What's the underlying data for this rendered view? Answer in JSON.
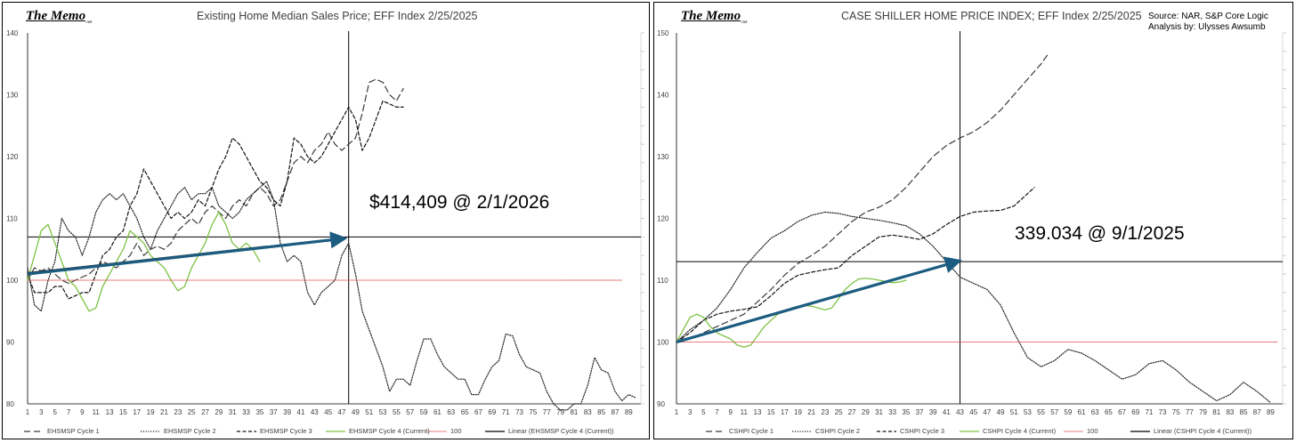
{
  "colors": {
    "cycle1": "#3a3a3a",
    "cycle2": "#222222",
    "cycle3": "#111111",
    "cycle4": "#7cc242",
    "hundred": "#e05050",
    "linear": "#000000",
    "arrow": "#1c5c80",
    "grid": "#000000"
  },
  "chart_data": [
    {
      "type": "line",
      "brand": "The Memo",
      "brand_suffix": ".net",
      "title": "Existing Home Median Sales Price; EFF Index 2/25/2025",
      "annotation": "$414,409 @ 2/1/2026",
      "ylim": [
        80,
        140
      ],
      "yticks": [
        80,
        90,
        100,
        110,
        120,
        130,
        140
      ],
      "xlim": [
        1,
        90
      ],
      "xticks": [
        1,
        3,
        5,
        7,
        9,
        11,
        13,
        15,
        17,
        19,
        21,
        23,
        25,
        27,
        29,
        31,
        33,
        35,
        37,
        39,
        41,
        43,
        45,
        47,
        49,
        51,
        53,
        55,
        57,
        59,
        61,
        63,
        65,
        67,
        69,
        71,
        73,
        75,
        77,
        79,
        81,
        83,
        85,
        87,
        89
      ],
      "vline_x": 48,
      "hline_y": 107,
      "arrow": {
        "from": [
          1,
          101
        ],
        "to": [
          47,
          106.7
        ]
      },
      "series": [
        {
          "name": "EHSMSP Cycle 1",
          "style": "long-dash",
          "color_key": "cycle1",
          "x": [
            1,
            2,
            3,
            4,
            5,
            6,
            7,
            8,
            9,
            10,
            11,
            12,
            13,
            14,
            15,
            16,
            17,
            18,
            19,
            20,
            21,
            22,
            23,
            24,
            25,
            26,
            27,
            28,
            29,
            30,
            31,
            32,
            33,
            34,
            35,
            36,
            37,
            38,
            39,
            40,
            41,
            42,
            43,
            44,
            45,
            46,
            47,
            48,
            49,
            50,
            51,
            52,
            53,
            54,
            55,
            56
          ],
          "values": [
            100,
            102,
            101.5,
            102,
            101,
            100,
            99.5,
            100,
            100.5,
            101,
            102,
            103,
            102.5,
            102,
            103,
            104,
            106,
            104,
            105,
            105.5,
            105,
            106,
            108,
            109,
            110,
            109,
            111,
            112,
            111,
            110,
            112,
            113,
            112,
            114,
            115,
            114,
            112,
            113,
            116,
            119,
            120,
            119,
            121,
            122,
            124,
            122,
            121,
            122,
            123,
            127,
            132,
            132.5,
            132,
            130,
            129,
            131
          ]
        },
        {
          "name": "EHSMSP Cycle 2",
          "style": "dotted",
          "color_key": "cycle2",
          "x": [
            1,
            2,
            3,
            4,
            5,
            6,
            7,
            8,
            9,
            10,
            11,
            12,
            13,
            14,
            15,
            16,
            17,
            18,
            19,
            20,
            21,
            22,
            23,
            24,
            25,
            26,
            27,
            28,
            29,
            30,
            31,
            32,
            33,
            34,
            35,
            36,
            37,
            38,
            39,
            40,
            41,
            42,
            43,
            44,
            45,
            46,
            47,
            48,
            49,
            50,
            51,
            52,
            53,
            54,
            55,
            56,
            57,
            58,
            59,
            60,
            61,
            62,
            63,
            64,
            65,
            66,
            67,
            68,
            69,
            70,
            71,
            72,
            73,
            74,
            75,
            76,
            77,
            78,
            79,
            80,
            81,
            82,
            83,
            84,
            85,
            86,
            87,
            88,
            89,
            90
          ],
          "values": [
            102,
            96,
            95,
            100,
            103,
            110,
            108,
            107,
            104,
            107,
            111,
            113,
            114,
            113,
            114,
            112,
            110,
            107,
            105,
            108,
            110,
            112,
            114,
            115,
            113,
            114,
            114,
            115,
            112,
            111,
            110,
            111,
            113,
            114,
            115,
            116,
            113,
            106,
            103,
            104,
            103,
            98,
            96,
            98,
            99,
            100,
            104,
            106,
            101,
            95,
            92,
            89,
            86,
            82,
            84,
            84,
            83,
            87,
            90.5,
            90.5,
            88,
            86,
            85,
            84,
            84,
            81.5,
            81.5,
            84,
            86,
            87,
            91.3,
            91,
            88,
            86,
            85.5,
            85,
            82,
            80,
            79,
            79,
            80,
            80,
            83,
            87.5,
            85.5,
            85,
            82,
            80.5,
            81.5,
            81
          ]
        },
        {
          "name": "EHSMSP Cycle 3",
          "style": "dash",
          "color_key": "cycle3",
          "x": [
            1,
            2,
            3,
            4,
            5,
            6,
            7,
            8,
            9,
            10,
            11,
            12,
            13,
            14,
            15,
            16,
            17,
            18,
            19,
            20,
            21,
            22,
            23,
            24,
            25,
            26,
            27,
            28,
            29,
            30,
            31,
            32,
            33,
            34,
            35,
            36,
            37,
            38,
            39,
            40,
            41,
            42,
            43,
            44,
            45,
            46,
            47,
            48,
            49,
            50,
            51,
            52,
            53,
            54,
            55,
            56
          ],
          "values": [
            101,
            98,
            98,
            98,
            99,
            99,
            97,
            97.5,
            98,
            98,
            101,
            104,
            105,
            107,
            108,
            112,
            114,
            118,
            116,
            114,
            112,
            110,
            111,
            110,
            111,
            113,
            112,
            115,
            118,
            120,
            123,
            122,
            120,
            118,
            116,
            115,
            113,
            112,
            116,
            123,
            122,
            120,
            119,
            120,
            122,
            124,
            126,
            128,
            126,
            121,
            123,
            126,
            129,
            128.5,
            128,
            128
          ]
        },
        {
          "name": "EHSMSP Cycle 4 (Current)",
          "style": "solid",
          "color_key": "cycle4",
          "x": [
            1,
            2,
            3,
            4,
            5,
            6,
            7,
            8,
            9,
            10,
            11,
            12,
            13,
            14,
            15,
            16,
            17,
            18,
            19,
            20,
            21,
            22,
            23,
            24,
            25,
            26,
            27,
            28,
            29,
            30,
            31,
            32,
            33,
            34,
            35
          ],
          "values": [
            100,
            104,
            108,
            109,
            106,
            103,
            100,
            99,
            97,
            95,
            95.5,
            99,
            101,
            103,
            105,
            108,
            107,
            106,
            104,
            103,
            102,
            100,
            98.3,
            99,
            102,
            104,
            106,
            109,
            111,
            109,
            106,
            105,
            106,
            105,
            103
          ]
        },
        {
          "name": "100",
          "style": "solid-thin",
          "color_key": "hundred",
          "x": [
            1,
            88
          ],
          "values": [
            100,
            100
          ]
        },
        {
          "name": "Linear (EHSMSP Cycle 4 (Current))",
          "style": "solid",
          "color_key": "linear",
          "x": [
            1,
            36
          ],
          "values": [
            101.2,
            105.5
          ]
        }
      ]
    },
    {
      "type": "line",
      "brand": "The Memo",
      "brand_suffix": ".net",
      "title": "CASE SHILLER HOME PRICE INDEX; EFF Index 2/25/2025",
      "source_line1": "Source: NAR, S&P Core Logic",
      "source_line2": "Analysis by: Ulysses Awsumb",
      "annotation": "339.034 @ 9/1/2025",
      "ylim": [
        90,
        150
      ],
      "yticks": [
        90,
        100,
        110,
        120,
        130,
        140,
        150
      ],
      "xlim": [
        1,
        90
      ],
      "xticks": [
        1,
        3,
        5,
        7,
        9,
        11,
        13,
        15,
        17,
        19,
        21,
        23,
        25,
        27,
        29,
        31,
        33,
        35,
        37,
        39,
        41,
        43,
        45,
        47,
        49,
        51,
        53,
        55,
        57,
        59,
        61,
        63,
        65,
        67,
        69,
        71,
        73,
        75,
        77,
        79,
        81,
        83,
        85,
        87,
        89
      ],
      "vline_x": 43,
      "hline_y": 113,
      "arrow": {
        "from": [
          1,
          100
        ],
        "to": [
          42.5,
          113
        ]
      },
      "series": [
        {
          "name": "CSHPI Cycle 1",
          "style": "long-dash",
          "color_key": "cycle1",
          "x": [
            1,
            3,
            5,
            7,
            9,
            11,
            13,
            15,
            17,
            19,
            21,
            23,
            25,
            27,
            29,
            31,
            33,
            35,
            37,
            39,
            41,
            43,
            45,
            47,
            49,
            51,
            53,
            55,
            56
          ],
          "values": [
            100,
            100.5,
            101.5,
            102.5,
            103.5,
            104.5,
            106.5,
            108.5,
            110.8,
            112.7,
            114,
            115.5,
            117.5,
            119.5,
            121,
            121.8,
            123,
            125,
            127.5,
            130,
            131.8,
            133,
            134,
            135.5,
            137.5,
            140,
            142.5,
            145,
            146.5
          ]
        },
        {
          "name": "CSHPI Cycle 2",
          "style": "dotted",
          "color_key": "cycle2",
          "x": [
            1,
            3,
            5,
            7,
            9,
            11,
            13,
            15,
            17,
            19,
            21,
            23,
            25,
            27,
            29,
            31,
            33,
            35,
            37,
            39,
            41,
            43,
            45,
            47,
            49,
            51,
            53,
            55,
            57,
            59,
            61,
            63,
            65,
            67,
            69,
            71,
            73,
            75,
            77,
            79,
            81,
            83,
            85,
            87,
            89
          ],
          "values": [
            100,
            102,
            103.5,
            105.5,
            108.5,
            112,
            114.5,
            116.8,
            118,
            119.5,
            120.5,
            121,
            120.8,
            120.3,
            120,
            119.7,
            119.3,
            118.8,
            117.5,
            115.5,
            113,
            110.5,
            109.5,
            108.5,
            106,
            101.5,
            97.5,
            96,
            97,
            98.8,
            98.2,
            97,
            95.5,
            94,
            94.7,
            96.5,
            97,
            95.5,
            93.5,
            92,
            90.5,
            91.5,
            93.5,
            92,
            90.2
          ]
        },
        {
          "name": "CSHPI Cycle 3",
          "style": "dash",
          "color_key": "cycle3",
          "x": [
            1,
            3,
            5,
            7,
            9,
            11,
            13,
            15,
            17,
            19,
            21,
            23,
            25,
            27,
            29,
            31,
            33,
            35,
            37,
            39,
            41,
            43,
            45,
            47,
            49,
            51,
            53,
            54
          ],
          "values": [
            100,
            101.5,
            103.5,
            104.5,
            105,
            105.3,
            105.7,
            107.5,
            109.5,
            110.8,
            111.3,
            111.7,
            112,
            114,
            115.5,
            117,
            117.3,
            117,
            116.6,
            117.5,
            119,
            120.3,
            121,
            121.2,
            121.3,
            122,
            124,
            125
          ]
        },
        {
          "name": "CSHPI Cycle 4 (Current)",
          "style": "solid",
          "color_key": "cycle4",
          "x": [
            1,
            2,
            3,
            4,
            5,
            6,
            7,
            8,
            9,
            10,
            11,
            12,
            13,
            14,
            15,
            16,
            17,
            18,
            19,
            20,
            21,
            22,
            23,
            24,
            25,
            26,
            27,
            28,
            29,
            30,
            31,
            32,
            33,
            34,
            35
          ],
          "values": [
            100,
            102,
            104,
            104.5,
            104,
            102.5,
            101.5,
            101,
            100.5,
            99.5,
            99.2,
            99.5,
            101,
            102.5,
            103.5,
            104.5,
            105,
            105.5,
            105.8,
            105.9,
            105.8,
            105.5,
            105.2,
            105.5,
            107,
            108.5,
            109.5,
            110.2,
            110.3,
            110.2,
            110,
            109.8,
            109.6,
            109.7,
            110
          ]
        },
        {
          "name": "100",
          "style": "solid-thin",
          "color_key": "hundred",
          "x": [
            1,
            90
          ],
          "values": [
            100,
            100
          ]
        },
        {
          "name": "Linear (CSHPI Cycle 4 (Current))",
          "style": "solid",
          "color_key": "linear",
          "x": [
            1,
            2
          ],
          "values": [
            100,
            100.3
          ]
        }
      ]
    }
  ]
}
